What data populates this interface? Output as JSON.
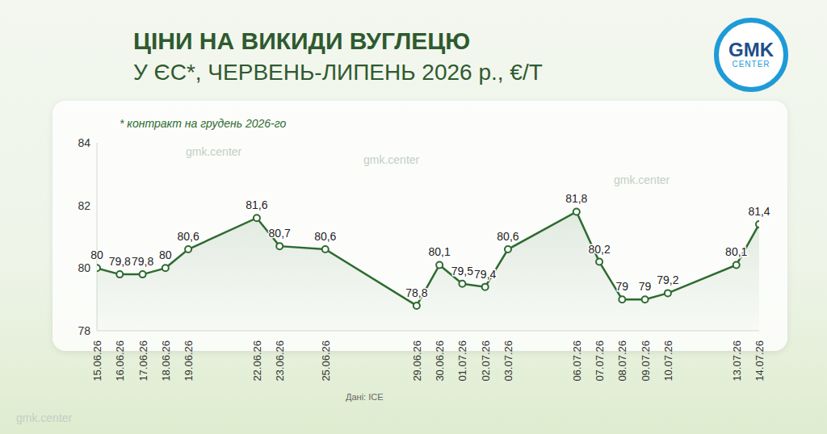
{
  "chart_data": {
    "type": "line",
    "title": "ЦІНИ НА ВИКИДИ ВУГЛЕЦЮ",
    "subtitle": "У ЄС*, ЧЕРВЕНЬ-ЛИПЕНЬ 2026 р., €/Т",
    "annotations": {
      "note": "* контракт на грудень 2026-го",
      "source": "Дані: ICE",
      "logo": [
        "GMK",
        "CENTER"
      ],
      "watermark": "gmk.center"
    },
    "x": [
      "15.06.26",
      "16.06.26",
      "17.06.26",
      "18.06.26",
      "19.06.26",
      "22.06.26",
      "23.06.26",
      "25.06.26",
      "29.06.26",
      "30.06.26",
      "01.07.26",
      "02.07.26",
      "03.07.26",
      "06.07.26",
      "07.07.26",
      "08.07.26",
      "09.07.26",
      "10.07.26",
      "13.07.26",
      "14.07.26"
    ],
    "values": [
      80,
      79.8,
      79.8,
      80,
      80.6,
      81.6,
      80.7,
      80.6,
      78.8,
      80.1,
      79.5,
      79.4,
      80.6,
      81.8,
      80.2,
      79,
      79,
      79.2,
      80.1,
      81.4
    ],
    "value_labels": [
      "80",
      "79,8",
      "79,8",
      "80",
      "80,6",
      "81,6",
      "80,7",
      "80,6",
      "78,8",
      "80,1",
      "79,5",
      "79,4",
      "80,6",
      "81,8",
      "80,2",
      "79",
      "79",
      "79,2",
      "80,1",
      "81,4"
    ],
    "color": "#2e6b30",
    "xlim": [
      "15.06.26",
      "14.07.26"
    ],
    "xticks": [
      "15.06.26",
      "16.06.26",
      "17.06.26",
      "18.06.26",
      "19.06.26",
      "22.06.26",
      "23.06.26",
      "25.06.26",
      "29.06.26",
      "30.06.26",
      "01.07.26",
      "02.07.26",
      "03.07.26",
      "06.07.26",
      "07.07.26",
      "08.07.26",
      "09.07.26",
      "10.07.26",
      "13.07.26",
      "14.07.26"
    ],
    "ylim": [
      78,
      84
    ],
    "yticks": [
      78,
      80,
      82,
      84
    ],
    "grid": false,
    "data_labels": true,
    "marker": "circle",
    "line_style": "solid"
  }
}
